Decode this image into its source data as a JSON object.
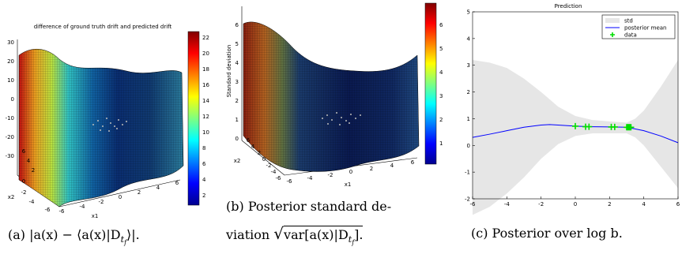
{
  "panels": {
    "a": {
      "title": "difference of ground truth drift and predicted drift",
      "z_ticks": [
        "30",
        "20",
        "10",
        "0",
        "-10",
        "-20",
        "-30"
      ],
      "x1_label": "x1",
      "x2_label": "x2",
      "x1_ticks": [
        "-6",
        "-4",
        "-2",
        "0",
        "2",
        "4",
        "6"
      ],
      "x2_ticks": [
        "6",
        "4",
        "2",
        "0",
        "-2",
        "-4",
        "-6"
      ],
      "colorbar_ticks": [
        "22",
        "20",
        "18",
        "16",
        "14",
        "12",
        "10",
        "8",
        "6",
        "4",
        "2"
      ],
      "caption": "(a) |a(x) − ⟨a(x)|D",
      "caption_sub": "t",
      "caption_subsub": "f",
      "caption_end": "⟩|."
    },
    "b": {
      "zlabel": "Standard deviation",
      "z_ticks": [
        "6",
        "5",
        "4",
        "3",
        "2",
        "1",
        "0"
      ],
      "x1_label": "x1",
      "x2_label": "x2",
      "x1_ticks": [
        "-6",
        "-4",
        "-2",
        "0",
        "2",
        "4",
        "6"
      ],
      "x2_ticks": [
        "6",
        "4",
        "2",
        "0",
        "-2",
        "-4",
        "-6"
      ],
      "colorbar_ticks": [
        "6",
        "5",
        "4",
        "3",
        "2",
        "1"
      ],
      "caption_line1": "(b) Posterior standard de-",
      "caption_line2": "viation",
      "caption_math": "var[a(x)|D",
      "caption_sub": "t",
      "caption_subsub": "f",
      "caption_math_end": "]."
    },
    "c": {
      "title": "Prediction",
      "caption": "(c) Posterior over log b."
    }
  },
  "chart_data": {
    "type": "line",
    "title": "Prediction",
    "xlim": [
      -6,
      6
    ],
    "ylim": [
      -2,
      5
    ],
    "x_ticks": [
      -6,
      -4,
      -2,
      0,
      2,
      4,
      6
    ],
    "y_ticks": [
      -2,
      -1,
      0,
      1,
      2,
      3,
      4,
      5
    ],
    "grid": false,
    "legend_position": "top-right",
    "legend": [
      "std",
      "posterior mean",
      "data"
    ],
    "series": [
      {
        "name": "posterior mean",
        "color": "#0000ff",
        "x": [
          -6,
          -5,
          -4,
          -3,
          -2,
          -1.5,
          -1,
          0,
          1,
          2,
          3,
          4,
          5,
          6
        ],
        "y": [
          0.3,
          0.42,
          0.55,
          0.68,
          0.76,
          0.78,
          0.76,
          0.72,
          0.7,
          0.69,
          0.68,
          0.55,
          0.35,
          0.1
        ]
      },
      {
        "name": "std",
        "color": "#e6e6e6",
        "x": [
          -6,
          -5,
          -4,
          -3,
          -2,
          -1,
          0,
          1,
          2,
          3,
          3.5,
          4,
          5,
          6
        ],
        "upper": [
          3.2,
          3.1,
          2.9,
          2.5,
          2.0,
          1.45,
          1.1,
          0.95,
          0.9,
          0.85,
          1.0,
          1.3,
          2.2,
          3.2
        ],
        "lower": [
          -2.6,
          -2.3,
          -1.8,
          -1.2,
          -0.5,
          0.05,
          0.35,
          0.45,
          0.45,
          0.45,
          0.3,
          0.0,
          -0.8,
          -1.6
        ]
      },
      {
        "name": "data",
        "color": "#00dd00",
        "x": [
          0.0,
          0.6,
          0.8,
          2.1,
          2.3,
          3.0,
          3.05,
          3.1,
          3.15,
          3.2,
          3.25
        ],
        "y": [
          0.72,
          0.7,
          0.7,
          0.69,
          0.69,
          0.68,
          0.68,
          0.68,
          0.68,
          0.68,
          0.68
        ]
      }
    ]
  },
  "colors": {
    "axis": "#000000",
    "band": "#e6e6e6",
    "mean": "#0000ff",
    "data": "#00dd00",
    "surface_colormap": "jet"
  }
}
